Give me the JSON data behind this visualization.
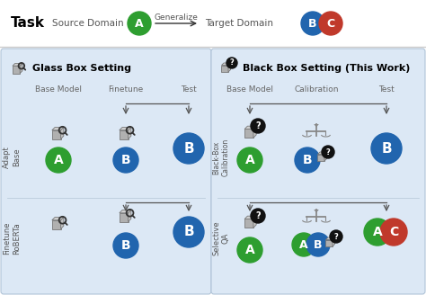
{
  "title_task": "Task",
  "source_domain": "Source Domain",
  "target_domain": "Target Domain",
  "generalize": "Generalize",
  "glass_box_title": "Glass Box Setting",
  "black_box_title": "Black Box Setting (This Work)",
  "col_headers_glass": [
    "Base Model",
    "Finetune",
    "Test"
  ],
  "col_headers_black": [
    "Base Model",
    "Calibration",
    "Test"
  ],
  "row_labels_glass": [
    "Adapt\nBase",
    "Finetune\nRoBERTa"
  ],
  "row_labels_black": [
    "Black-Box\nCalibration",
    "Selective\nQA"
  ],
  "green": "#2e9e30",
  "blue": "#2165ae",
  "red": "#c0392b",
  "gray_box": "#aaaaaa",
  "bg_panel": "#dce8f5",
  "bg_top": "#ffffff",
  "panel_edge": "#b0c4d8"
}
